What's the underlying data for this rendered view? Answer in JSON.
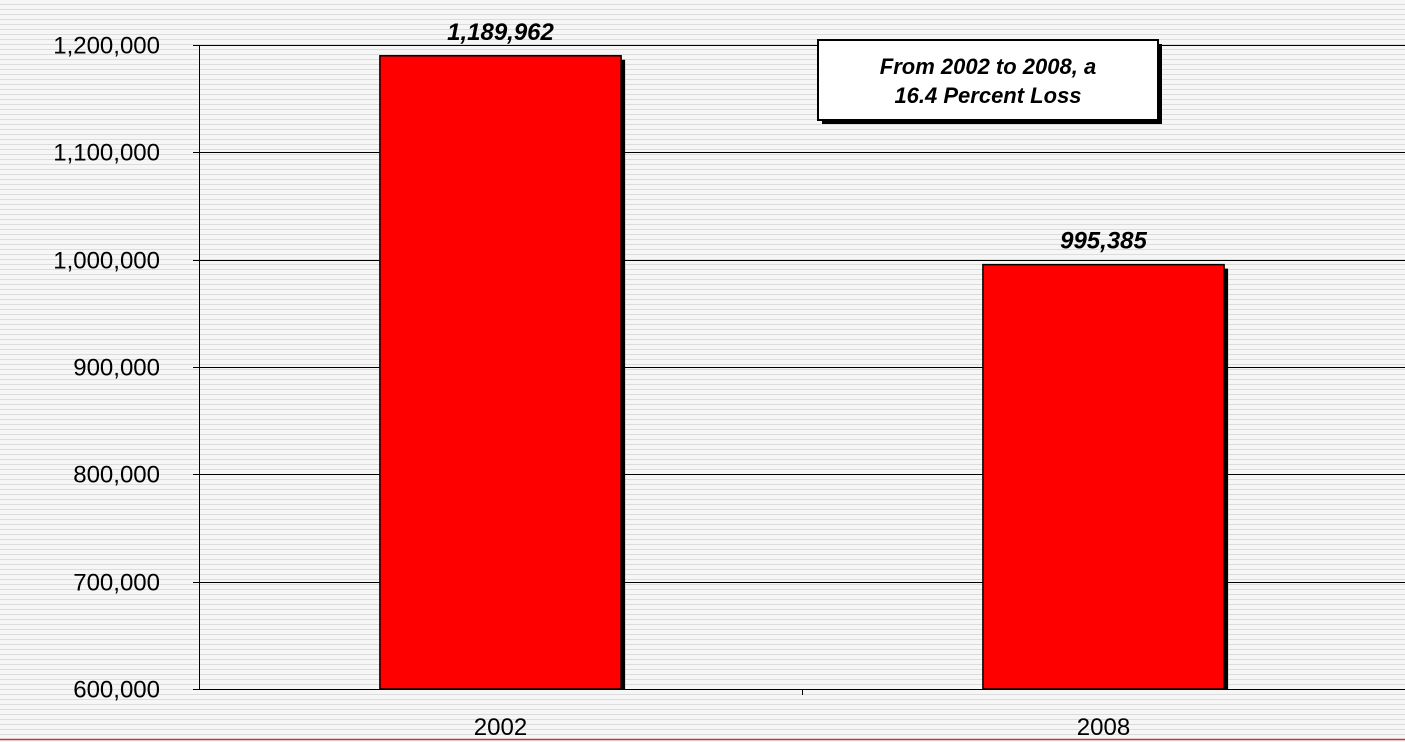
{
  "chart_data": {
    "type": "bar",
    "categories": [
      "2002",
      "2008"
    ],
    "values": [
      1189962,
      995385
    ],
    "data_labels": [
      "1,189,962",
      "995,385"
    ],
    "ylim": [
      600000,
      1200000
    ],
    "yticks": [
      600000,
      700000,
      800000,
      900000,
      1000000,
      1100000,
      1200000
    ],
    "ytick_labels": [
      "600,000",
      "700,000",
      "800,000",
      "900,000",
      "1,000,000",
      "1,100,000",
      "1,200,000"
    ],
    "annotation": {
      "line1": "From 2002 to 2008, a",
      "line2": "16.4 Percent Loss",
      "placement": "top-right"
    },
    "grid": true,
    "bar_color": "#ff0000",
    "legend": "none"
  }
}
